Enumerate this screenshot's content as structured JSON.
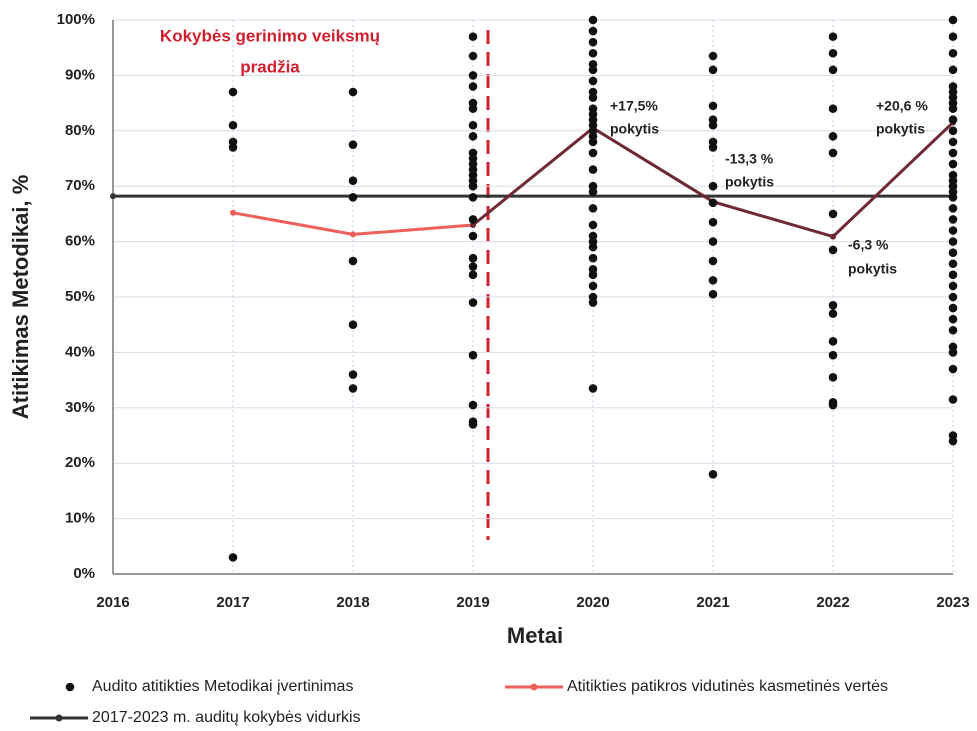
{
  "chart_data": {
    "type": "scatter",
    "x_label": "Metai",
    "y_label": "Atitikimas Metodikai, %",
    "xlim": [
      2016,
      2023
    ],
    "xticks": [
      2016,
      2017,
      2018,
      2019,
      2020,
      2021,
      2022,
      2023
    ],
    "ylim": [
      0,
      100
    ],
    "yticks": [
      {
        "value": 0,
        "label": "0%"
      },
      {
        "value": 10,
        "label": "10%"
      },
      {
        "value": 20,
        "label": "20%"
      },
      {
        "value": 30,
        "label": "30%"
      },
      {
        "value": 40,
        "label": "40%"
      },
      {
        "value": 50,
        "label": "50%"
      },
      {
        "value": 60,
        "label": "60%"
      },
      {
        "value": 70,
        "label": "70%"
      },
      {
        "value": 80,
        "label": "80%"
      },
      {
        "value": 90,
        "label": "90%"
      },
      {
        "value": 100,
        "label": "100%"
      }
    ],
    "grid": true,
    "annotations": [
      {
        "lines": [
          "Kokybės gerinimo veiksmų",
          "pradžia"
        ],
        "color": "#d0202f"
      },
      {
        "lines": [
          "+17,5%",
          "pokytis"
        ]
      },
      {
        "lines": [
          "-13,3 %",
          "pokytis"
        ]
      },
      {
        "lines": [
          "+20,6 %",
          "pokytis"
        ]
      },
      {
        "lines": [
          "-6,3 %",
          "pokytis"
        ]
      }
    ],
    "series": [
      {
        "name": "Audito atitikties Metodikai įvertinimas",
        "type": "scatter",
        "color": "#111111",
        "x": [
          2017,
          2017,
          2017,
          2017,
          2017,
          2018,
          2018,
          2018,
          2018,
          2018,
          2018,
          2018,
          2018,
          2019,
          2019,
          2019,
          2019,
          2019,
          2019,
          2019,
          2019,
          2019,
          2019,
          2019,
          2019,
          2019,
          2019,
          2019,
          2019,
          2019,
          2019,
          2019,
          2019,
          2019,
          2019,
          2019,
          2019,
          2019,
          2019,
          2020,
          2020,
          2020,
          2020,
          2020,
          2020,
          2020,
          2020,
          2020,
          2020,
          2020,
          2020,
          2020,
          2020,
          2020,
          2020,
          2020,
          2020,
          2020,
          2020,
          2020,
          2020,
          2020,
          2020,
          2020,
          2020,
          2020,
          2020,
          2020,
          2020,
          2020,
          2020,
          2021,
          2021,
          2021,
          2021,
          2021,
          2021,
          2021,
          2021,
          2021,
          2021,
          2021,
          2021,
          2021,
          2021,
          2021,
          2022,
          2022,
          2022,
          2022,
          2022,
          2022,
          2022,
          2022,
          2022,
          2022,
          2022,
          2022,
          2022,
          2022,
          2022,
          2023,
          2023,
          2023,
          2023,
          2023,
          2023,
          2023,
          2023,
          2023,
          2023,
          2023,
          2023,
          2023,
          2023,
          2023,
          2023,
          2023,
          2023,
          2023,
          2023,
          2023,
          2023,
          2023,
          2023,
          2023,
          2023,
          2023,
          2023,
          2023,
          2023,
          2023,
          2023,
          2023,
          2023,
          2023,
          2023,
          2023
        ],
        "values": [
          87,
          81,
          78,
          77,
          3,
          87,
          77.5,
          71,
          68,
          56.5,
          45,
          36,
          33.5,
          97,
          93.5,
          90,
          88,
          85,
          84,
          81,
          79,
          76,
          75,
          74,
          73,
          72,
          71,
          70,
          68,
          64,
          61,
          57,
          55.5,
          54,
          49,
          39.5,
          30.5,
          27.5,
          27,
          100,
          98,
          96,
          94,
          92,
          91,
          89,
          87,
          86,
          84,
          83,
          82,
          81,
          80,
          79,
          78,
          76,
          73,
          70,
          69,
          66,
          63,
          61,
          60,
          59,
          57,
          55,
          54,
          52,
          50,
          49,
          33.5,
          93.5,
          91,
          84.5,
          82,
          81,
          78,
          77,
          70,
          67,
          63.5,
          60,
          56.5,
          53,
          50.5,
          18,
          97,
          94,
          91,
          84,
          79,
          76,
          65,
          58.5,
          48.5,
          47,
          42,
          39.5,
          35.5,
          31,
          30.5,
          100,
          97,
          94,
          91,
          88,
          87,
          86,
          85,
          84,
          82,
          80,
          78,
          76,
          74,
          72,
          71,
          70,
          69,
          68,
          66,
          64,
          62,
          60,
          58,
          56,
          54,
          52,
          50,
          48,
          46,
          44,
          41,
          40,
          37,
          31.5,
          25,
          24
        ]
      },
      {
        "name": "Atitikties patikros vidutinės kasmetinės vertės",
        "type": "line",
        "color": "#f0605a",
        "x": [
          2017,
          2018,
          2019
        ],
        "values": [
          65.2,
          61.3,
          63.0
        ]
      },
      {
        "type": "line",
        "color": "#6e2a33",
        "x": [
          2019,
          2020,
          2021,
          2022,
          2023
        ],
        "values": [
          63.0,
          80.5,
          67.2,
          60.9,
          81.5
        ]
      },
      {
        "name": "2017-2023 m. auditų kokybės vidurkis",
        "type": "line",
        "color": "#333333",
        "x": [
          2016,
          2023
        ],
        "values": [
          68.2,
          68.2
        ]
      }
    ]
  }
}
